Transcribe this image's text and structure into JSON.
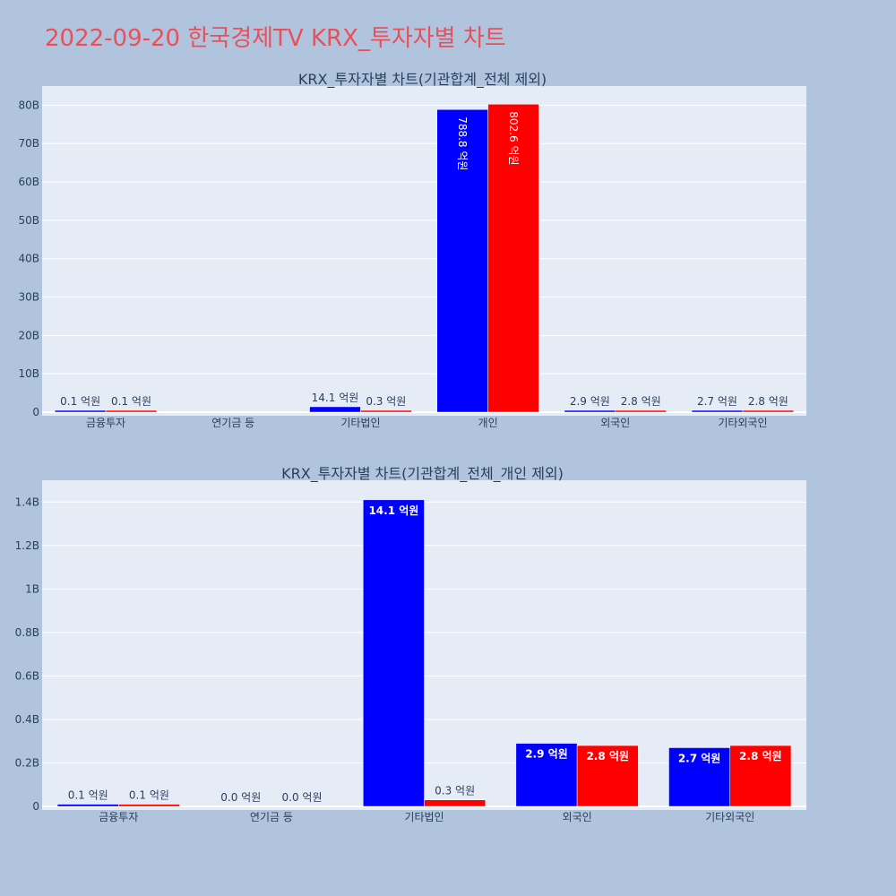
{
  "page_title": "2022-09-20 한국경제TV KRX_투자자별 차트",
  "colors": {
    "background": "#b0c4de",
    "plot_bg": "#e5ecf6",
    "title": "#e8505b",
    "series_1": "#0000ff",
    "series_2": "#ff0000"
  },
  "chart_data": [
    {
      "type": "bar",
      "title": "KRX_투자자별 차트(기관합계_전체 제외)",
      "categories": [
        "금융투자",
        "연기금 등",
        "기타법인",
        "개인",
        "외국인",
        "기타외국인"
      ],
      "series": [
        {
          "values": [
            10000000,
            0,
            1410000000,
            78880000000,
            290000000,
            270000000
          ],
          "labels": [
            "0.1 억원",
            "",
            "14.1 억원",
            "788.8 억원",
            "2.9 억원",
            "2.7 억원"
          ]
        },
        {
          "values": [
            10000000,
            0,
            30000000,
            80260000000,
            280000000,
            280000000
          ],
          "labels": [
            "0.1 억원",
            "",
            "0.3 억원",
            "802.6 억원",
            "2.8 억원",
            "2.8 억원"
          ]
        }
      ],
      "ylim": [
        0,
        85000000000
      ],
      "yticks": [
        0,
        10000000000,
        20000000000,
        30000000000,
        40000000000,
        50000000000,
        60000000000,
        70000000000,
        80000000000
      ],
      "ytick_labels": [
        "0",
        "10B",
        "20B",
        "30B",
        "40B",
        "50B",
        "60B",
        "70B",
        "80B"
      ],
      "grid": true
    },
    {
      "type": "bar",
      "title": "KRX_투자자별 차트(기관합계_전체_개인 제외)",
      "categories": [
        "금융투자",
        "연기금 등",
        "기타법인",
        "외국인",
        "기타외국인"
      ],
      "series": [
        {
          "values": [
            10000000,
            0,
            1410000000,
            290000000,
            270000000
          ],
          "labels": [
            "0.1 억원",
            "0.0 억원",
            "14.1 억원",
            "2.9 억원",
            "2.7 억원"
          ]
        },
        {
          "values": [
            10000000,
            0,
            30000000,
            280000000,
            280000000
          ],
          "labels": [
            "0.1 억원",
            "0.0 억원",
            "0.3 억원",
            "2.8 억원",
            "2.8 억원"
          ]
        }
      ],
      "ylim": [
        0,
        1500000000
      ],
      "yticks": [
        0,
        200000000,
        400000000,
        600000000,
        800000000,
        1000000000,
        1200000000,
        1400000000
      ],
      "ytick_labels": [
        "0",
        "0.2B",
        "0.4B",
        "0.6B",
        "0.8B",
        "1B",
        "1.2B",
        "1.4B"
      ],
      "grid": true
    }
  ]
}
